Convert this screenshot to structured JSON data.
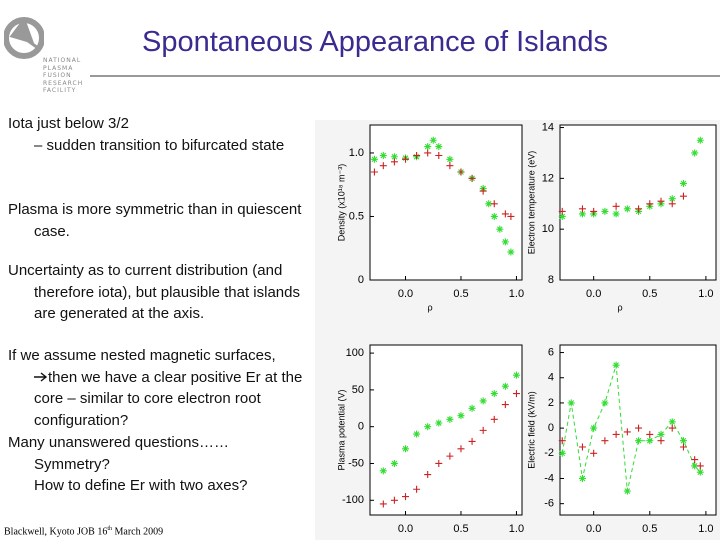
{
  "title": "Spontaneous Appearance of Islands",
  "logo": [
    "NATIONAL",
    "PLASMA",
    "FUSION",
    "RESEARCH",
    "FACILITY"
  ],
  "bullets": [
    {
      "text": "Iota just below 3/2",
      "sub": [
        "– sudden transition to bifurcated state"
      ]
    },
    {
      "text": "Plasma is more symmetric than in quiescent case."
    },
    {
      "text": "Uncertainty as to current distribution (and therefore iota), but plausible that islands are generated at the axis."
    },
    {
      "text": "If we assume nested magnetic surfaces,",
      "sub": [
        "then we have a clear positive Er at the core – similar to core electron root configuration?"
      ]
    },
    {
      "text": "Many unanswered questions……",
      "sub": [
        "Symmetry?",
        "How to define Er with two axes?"
      ]
    }
  ],
  "footer": {
    "pre": "Blackwell, Kyoto JOB 16",
    "sup": "th",
    "post": "March 2009"
  },
  "plots": [
    {
      "ylabel": "Density (x10¹⁸ m⁻³)",
      "xlabel": "ρ",
      "xlim": [
        -0.32,
        1.05
      ],
      "ylim": [
        0,
        1.22
      ],
      "xticks": [
        {
          "value": 0,
          "label": "0.0"
        },
        0.5,
        {
          "value": 1,
          "label": "1.0"
        }
      ],
      "yticks": [
        0,
        0.5,
        {
          "value": 1,
          "label": "1.0"
        }
      ],
      "series": [
        {
          "color": "#33dd33",
          "marker": "*",
          "x": [
            -0.28,
            -0.2,
            -0.1,
            0,
            0.1,
            0.2,
            0.25,
            0.3,
            0.4,
            0.5,
            0.6,
            0.7,
            0.75,
            0.8,
            0.85,
            0.9,
            0.95
          ],
          "values": [
            0.95,
            0.98,
            0.97,
            0.96,
            0.97,
            1.05,
            1.1,
            1.05,
            0.95,
            0.85,
            0.8,
            0.72,
            0.6,
            0.5,
            0.4,
            0.3,
            0.22
          ]
        },
        {
          "color": "#cc2222",
          "marker": "+",
          "x": [
            -0.28,
            -0.2,
            -0.1,
            0,
            0.1,
            0.2,
            0.3,
            0.4,
            0.5,
            0.6,
            0.7,
            0.8,
            0.9,
            0.95
          ],
          "values": [
            0.85,
            0.9,
            0.93,
            0.95,
            0.98,
            1.0,
            0.98,
            0.9,
            0.85,
            0.8,
            0.7,
            0.6,
            0.52,
            0.5
          ]
        }
      ]
    },
    {
      "ylabel": "Electron temperature (eV)",
      "xlabel": "ρ",
      "xlim": [
        -0.3,
        1.09
      ],
      "ylim": [
        8,
        14.1
      ],
      "xticks": [
        {
          "value": 0,
          "label": "0.0"
        },
        0.5,
        {
          "value": 1,
          "label": "1.0"
        }
      ],
      "yticks": [
        8,
        10,
        12,
        14
      ],
      "series": [
        {
          "color": "#33dd33",
          "marker": "*",
          "x": [
            -0.28,
            -0.1,
            0,
            0.1,
            0.2,
            0.3,
            0.4,
            0.5,
            0.6,
            0.7,
            0.8,
            0.9,
            0.95
          ],
          "values": [
            10.5,
            10.6,
            10.6,
            10.7,
            10.6,
            10.8,
            10.7,
            10.9,
            11,
            11.2,
            11.8,
            13,
            13.5
          ]
        },
        {
          "color": "#cc2222",
          "marker": "+",
          "x": [
            -0.28,
            -0.1,
            0,
            0.2,
            0.4,
            0.5,
            0.6,
            0.7,
            0.8
          ],
          "values": [
            10.7,
            10.8,
            10.7,
            10.9,
            10.8,
            11,
            11.1,
            11,
            11.3
          ]
        }
      ]
    },
    {
      "ylabel": "Plasma potential (V)",
      "xlabel": "ρ",
      "xlim": [
        -0.32,
        1.05
      ],
      "ylim": [
        -120,
        111
      ],
      "xticks": [
        {
          "value": 0,
          "label": "0.0"
        },
        0.5,
        {
          "value": 1,
          "label": "1.0"
        }
      ],
      "yticks": [
        -100,
        -50,
        0,
        50,
        100
      ],
      "series": [
        {
          "color": "#33dd33",
          "marker": "*",
          "x": [
            -0.2,
            -0.1,
            0,
            0.1,
            0.2,
            0.3,
            0.4,
            0.5,
            0.6,
            0.7,
            0.8,
            0.9,
            1.0
          ],
          "values": [
            -60,
            -50,
            -30,
            -10,
            0,
            5,
            10,
            15,
            25,
            35,
            45,
            55,
            70
          ]
        },
        {
          "color": "#cc2222",
          "marker": "+",
          "x": [
            -0.2,
            -0.1,
            0,
            0.1,
            0.2,
            0.3,
            0.4,
            0.5,
            0.6,
            0.7,
            0.8,
            0.9,
            1.0
          ],
          "values": [
            -105,
            -100,
            -95,
            -85,
            -65,
            -50,
            -40,
            -30,
            -20,
            -5,
            10,
            30,
            45
          ]
        }
      ]
    },
    {
      "ylabel": "Electric field (kV/m)",
      "xlabel": "ρ",
      "xlim": [
        -0.3,
        1.09
      ],
      "ylim": [
        -6.9,
        6.6
      ],
      "xticks": [
        {
          "value": 0,
          "label": "0.0"
        },
        0.5,
        {
          "value": 1,
          "label": "1.0"
        }
      ],
      "yticks": [
        -6,
        -4,
        -2,
        0,
        2,
        4,
        6
      ],
      "series": [
        {
          "color": "#33dd33",
          "marker": "*",
          "line": "dashed",
          "x": [
            -0.28,
            -0.2,
            -0.1,
            0,
            0.1,
            0.2,
            0.3,
            0.4,
            0.5,
            0.6,
            0.7,
            0.8,
            0.9,
            0.95
          ],
          "values": [
            -2,
            2,
            -4,
            0,
            2,
            5,
            -5,
            -1,
            -1,
            -0.5,
            0.5,
            -1,
            -3,
            -3.5
          ]
        },
        {
          "color": "#cc2222",
          "marker": "+",
          "x": [
            -0.28,
            -0.1,
            0,
            0.1,
            0.2,
            0.3,
            0.4,
            0.5,
            0.6,
            0.7,
            0.8,
            0.9,
            0.95
          ],
          "values": [
            -1,
            -1.5,
            -2,
            -1,
            -0.5,
            -0.3,
            0,
            -0.5,
            -1,
            0,
            -1.5,
            -2.5,
            -3
          ]
        }
      ]
    }
  ]
}
